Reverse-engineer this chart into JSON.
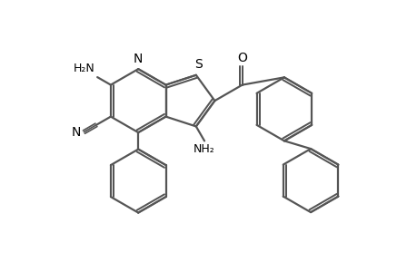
{
  "bg_color": "#ffffff",
  "line_color": "#555555",
  "line_width": 1.6,
  "fig_width": 4.6,
  "fig_height": 3.0,
  "dpi": 100,
  "xlim": [
    0,
    9.2
  ],
  "ylim": [
    0,
    6.0
  ]
}
